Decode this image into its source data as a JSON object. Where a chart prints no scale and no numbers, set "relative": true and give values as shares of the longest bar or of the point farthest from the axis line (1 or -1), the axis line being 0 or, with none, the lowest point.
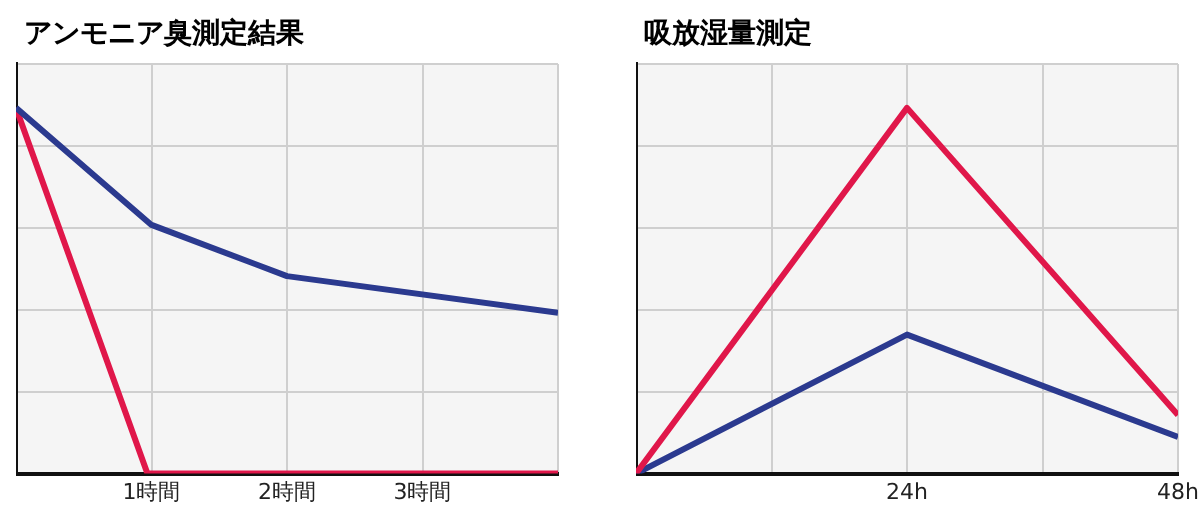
{
  "chart_data": [
    {
      "type": "line",
      "title": "アンモニア臭測定結果",
      "relative": true,
      "x": [
        0,
        1,
        2,
        4
      ],
      "xlim": [
        0,
        4
      ],
      "xticks": [
        {
          "value": 1,
          "label": "1時間"
        },
        {
          "value": 2,
          "label": "2時間"
        },
        {
          "value": 3,
          "label": "3時間"
        },
        {
          "value": 4,
          "label": null
        }
      ],
      "grid": true,
      "tick_labels": "x",
      "legend": false,
      "series": [
        {
          "color": "#2b3a8f",
          "values": [
            1,
            0.68,
            0.54,
            0.44
          ]
        },
        {
          "color": "#e0174a",
          "x": [
            0,
            0.97,
            4
          ],
          "values": [
            1,
            0,
            0
          ]
        }
      ]
    },
    {
      "type": "line",
      "title": "吸放湿量測定",
      "relative": true,
      "x": [
        0,
        24,
        48
      ],
      "xlim": [
        0,
        48
      ],
      "xticks": [
        {
          "value": 12,
          "label": null
        },
        {
          "value": 24,
          "label": "24h"
        },
        {
          "value": 36,
          "label": null
        },
        {
          "value": 48,
          "label": "48h"
        }
      ],
      "grid": true,
      "tick_labels": "x",
      "legend": false,
      "series": [
        {
          "color": "#e0174a",
          "values": [
            0,
            1,
            0.16
          ]
        },
        {
          "color": "#2b3a8f",
          "values": [
            0,
            0.38,
            0.1
          ]
        }
      ]
    }
  ]
}
